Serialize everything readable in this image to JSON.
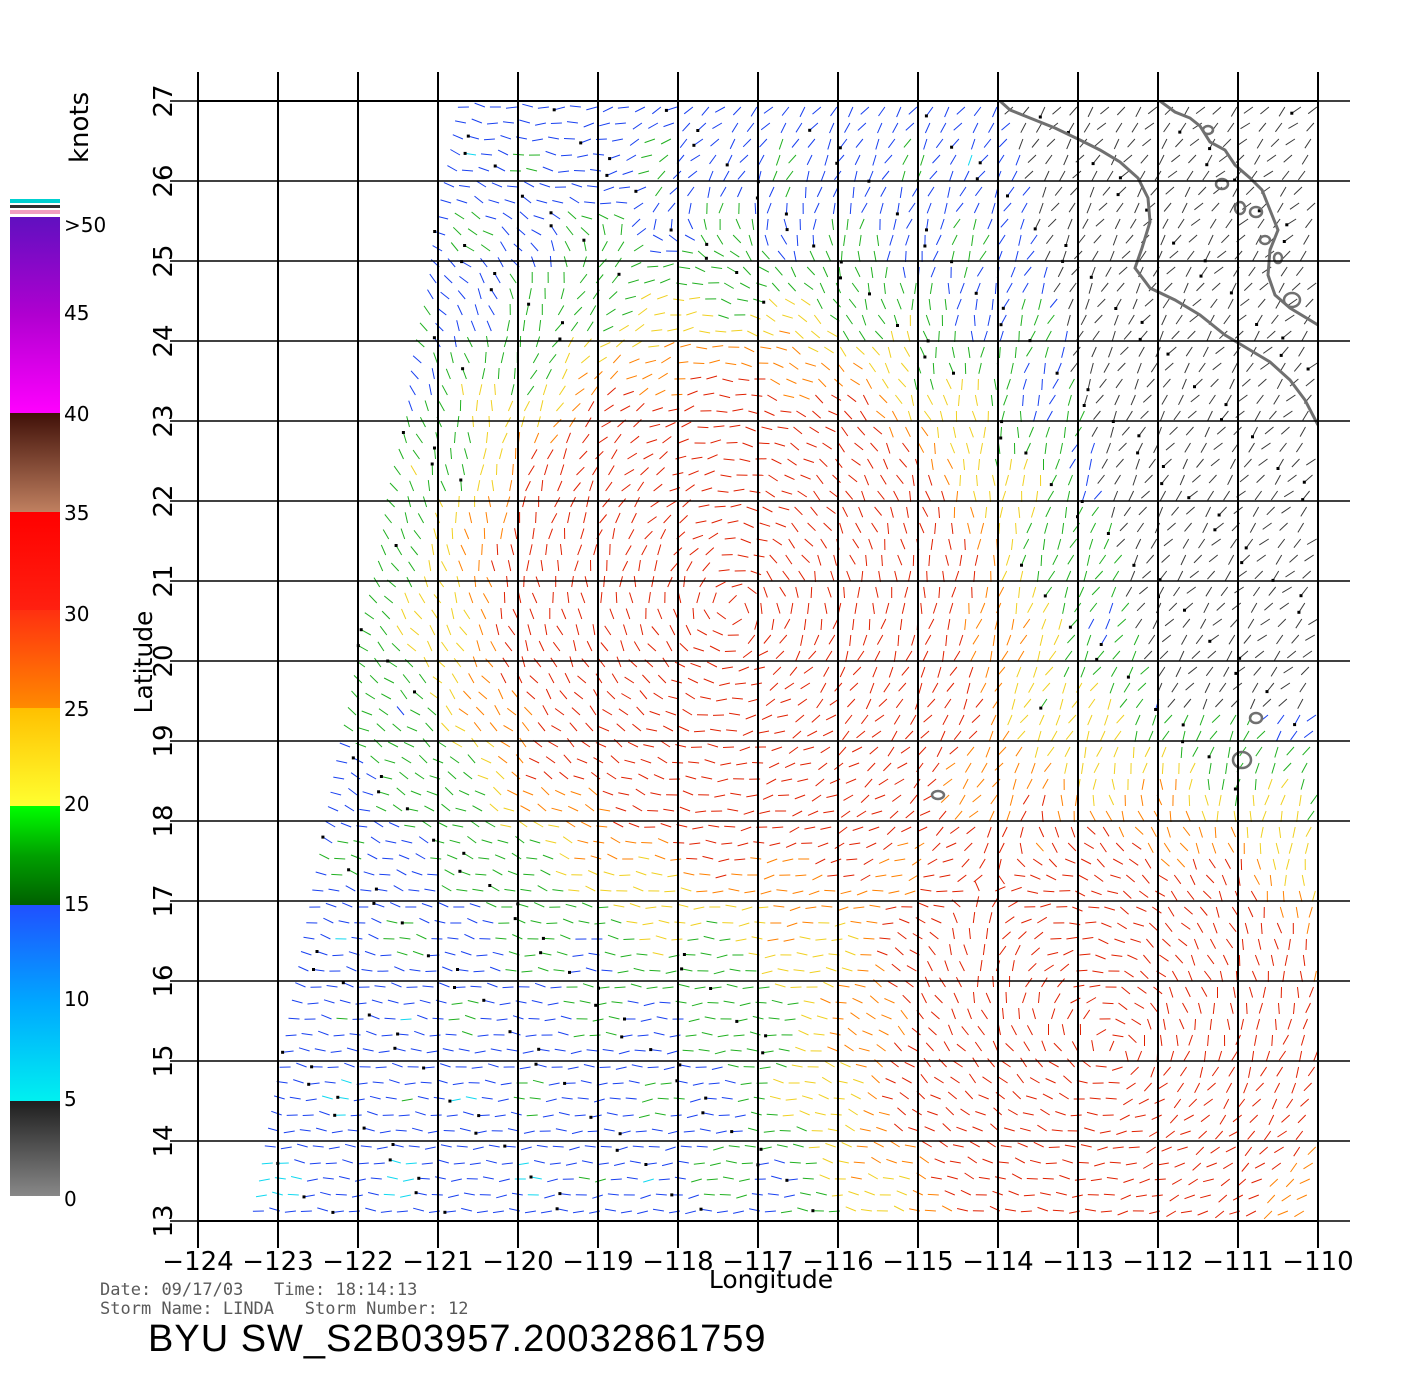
{
  "map": {
    "x_axis_label": "Longitude",
    "y_axis_label": "Latitude",
    "lon_ticks": [
      "-124",
      "-123",
      "-122",
      "-121",
      "-120",
      "-119",
      "-118",
      "-117",
      "-116",
      "-115",
      "-114",
      "-113",
      "-112",
      "-111",
      "-110"
    ],
    "lat_ticks": [
      "13",
      "14",
      "15",
      "16",
      "17",
      "18",
      "19",
      "20",
      "21",
      "22",
      "23",
      "24",
      "25",
      "26",
      "27"
    ],
    "lon_range": [
      -124,
      -110
    ],
    "lat_range": [
      13,
      27
    ],
    "grid": true,
    "storm_center_lon": -117.3,
    "storm_center_lat": 20.6
  },
  "colorbar": {
    "unit_label": "knots",
    "tick_labels": [
      "0",
      "5",
      "10",
      "15",
      "20",
      "25",
      "30",
      "35",
      "40",
      "45",
      ">50"
    ],
    "colors": {
      "gray": "#888888",
      "dark": "#222222",
      "cyan": "#00e8f0",
      "blue": "#0040ff",
      "dark_blue": "#0000e0",
      "green_dark": "#006400",
      "green": "#00ff00",
      "yellow": "#ffff20",
      "orange": "#ff8000",
      "red": "#ff2000",
      "brown": "#4a1a10",
      "tan": "#c08060",
      "magenta": "#ff00ff",
      "purple": "#6010c0"
    }
  },
  "footer": {
    "date_label": "Date:",
    "date_value": "09/17/03",
    "time_label": "Time:",
    "time_value": "18:14:13",
    "storm_name_label": "Storm Name:",
    "storm_name_value": "LINDA",
    "storm_number_label": "Storm Number:",
    "storm_number_value": "12",
    "product_id": "BYU SW_S2B03957.20032861759"
  }
}
